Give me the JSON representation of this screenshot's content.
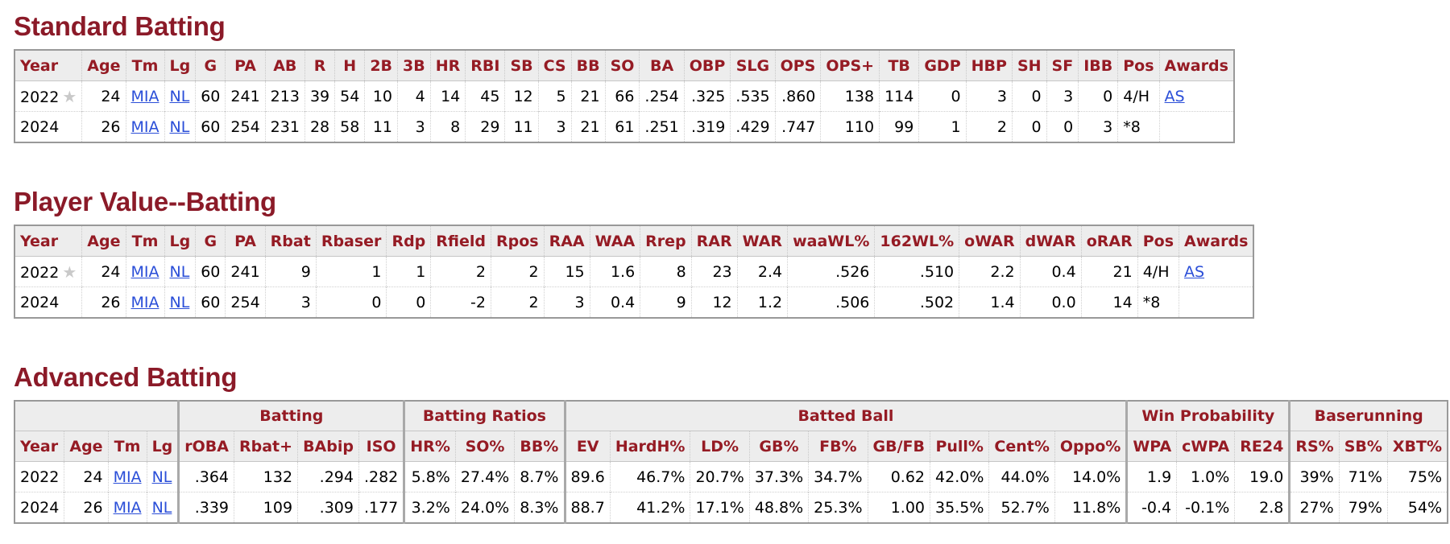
{
  "standard": {
    "title": "Standard Batting",
    "headers": [
      "Year",
      "Age",
      "Tm",
      "Lg",
      "G",
      "PA",
      "AB",
      "R",
      "H",
      "2B",
      "3B",
      "HR",
      "RBI",
      "SB",
      "CS",
      "BB",
      "SO",
      "BA",
      "OBP",
      "SLG",
      "OPS",
      "OPS+",
      "TB",
      "GDP",
      "HBP",
      "SH",
      "SF",
      "IBB",
      "Pos",
      "Awards"
    ],
    "rows": [
      {
        "year": "2022",
        "allstar": true,
        "cells": [
          "24",
          "MIA",
          "NL",
          "60",
          "241",
          "213",
          "39",
          "54",
          "10",
          "4",
          "14",
          "45",
          "12",
          "5",
          "21",
          "66",
          ".254",
          ".325",
          ".535",
          ".860",
          "138",
          "114",
          "0",
          "3",
          "0",
          "3",
          "0",
          "4/H",
          "AS"
        ]
      },
      {
        "year": "2024",
        "allstar": false,
        "cells": [
          "26",
          "MIA",
          "NL",
          "60",
          "254",
          "231",
          "28",
          "58",
          "11",
          "3",
          "8",
          "29",
          "11",
          "3",
          "21",
          "61",
          ".251",
          ".319",
          ".429",
          ".747",
          "110",
          "99",
          "1",
          "2",
          "0",
          "0",
          "3",
          "*8",
          ""
        ]
      }
    ]
  },
  "value": {
    "title": "Player Value--Batting",
    "headers": [
      "Year",
      "Age",
      "Tm",
      "Lg",
      "G",
      "PA",
      "Rbat",
      "Rbaser",
      "Rdp",
      "Rfield",
      "Rpos",
      "RAA",
      "WAA",
      "Rrep",
      "RAR",
      "WAR",
      "waaWL%",
      "162WL%",
      "oWAR",
      "dWAR",
      "oRAR",
      "Pos",
      "Awards"
    ],
    "rows": [
      {
        "year": "2022",
        "allstar": true,
        "cells": [
          "24",
          "MIA",
          "NL",
          "60",
          "241",
          "9",
          "1",
          "1",
          "2",
          "2",
          "15",
          "1.6",
          "8",
          "23",
          "2.4",
          ".526",
          ".510",
          "2.2",
          "0.4",
          "21",
          "4/H",
          "AS"
        ]
      },
      {
        "year": "2024",
        "allstar": false,
        "cells": [
          "26",
          "MIA",
          "NL",
          "60",
          "254",
          "3",
          "0",
          "0",
          "-2",
          "2",
          "3",
          "0.4",
          "9",
          "12",
          "1.2",
          ".506",
          ".502",
          "1.4",
          "0.0",
          "14",
          "*8",
          ""
        ]
      }
    ]
  },
  "advanced": {
    "title": "Advanced Batting",
    "groups": [
      {
        "label": "",
        "span": 4
      },
      {
        "label": "Batting",
        "span": 4
      },
      {
        "label": "Batting Ratios",
        "span": 3
      },
      {
        "label": "Batted Ball",
        "span": 9
      },
      {
        "label": "Win Probability",
        "span": 3
      },
      {
        "label": "Baserunning",
        "span": 3
      }
    ],
    "headers": [
      "Year",
      "Age",
      "Tm",
      "Lg",
      "rOBA",
      "Rbat+",
      "BAbip",
      "ISO",
      "HR%",
      "SO%",
      "BB%",
      "EV",
      "HardH%",
      "LD%",
      "GB%",
      "FB%",
      "GB/FB",
      "Pull%",
      "Cent%",
      "Oppo%",
      "WPA",
      "cWPA",
      "RE24",
      "RS%",
      "SB%",
      "XBT%"
    ],
    "rows": [
      {
        "year": "2022",
        "cells": [
          "24",
          "MIA",
          "NL",
          ".364",
          "132",
          ".294",
          ".282",
          "5.8%",
          "27.4%",
          "8.7%",
          "89.6",
          "46.7%",
          "20.7%",
          "37.3%",
          "34.7%",
          "0.62",
          "42.0%",
          "44.0%",
          "14.0%",
          "1.9",
          "1.0%",
          "19.0",
          "39%",
          "71%",
          "75%"
        ]
      },
      {
        "year": "2024",
        "cells": [
          "26",
          "MIA",
          "NL",
          ".339",
          "109",
          ".309",
          ".177",
          "3.2%",
          "24.0%",
          "8.3%",
          "88.7",
          "41.2%",
          "17.1%",
          "48.8%",
          "25.3%",
          "1.00",
          "35.5%",
          "52.7%",
          "11.8%",
          "-0.4",
          "-0.1%",
          "2.8",
          "27%",
          "79%",
          "54%"
        ]
      }
    ]
  }
}
